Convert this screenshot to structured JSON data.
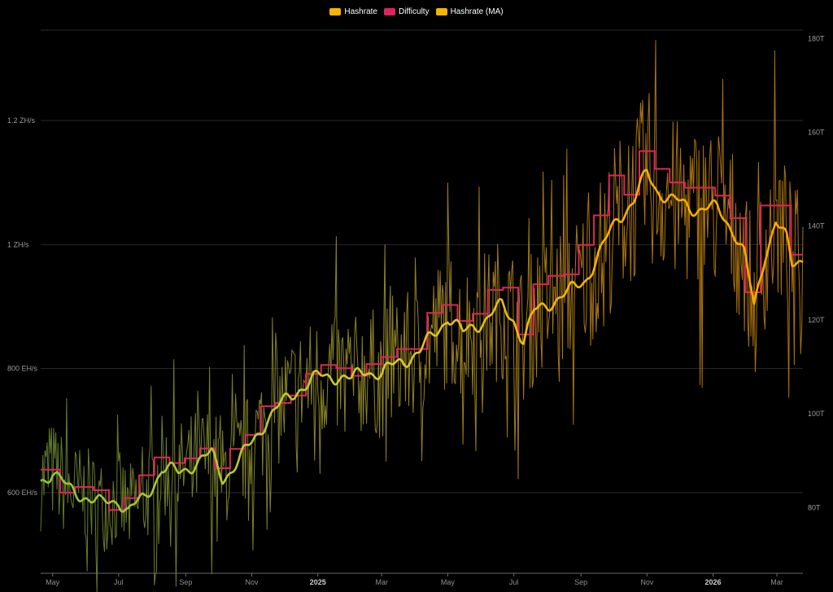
{
  "legend": [
    {
      "label": "Hashrate",
      "color": "#f5b400"
    },
    {
      "label": "Difficulty",
      "color": "#e0245e"
    },
    {
      "label": "Hashrate (MA)",
      "color": "#f5b400"
    }
  ],
  "chart_data": {
    "type": "line",
    "title": "",
    "x_range": [
      "2024-04-20",
      "2026-03-25"
    ],
    "x_ticks": [
      {
        "label": "May",
        "date": "2024-05-01"
      },
      {
        "label": "Jul",
        "date": "2024-07-01"
      },
      {
        "label": "Sep",
        "date": "2024-09-01"
      },
      {
        "label": "Nov",
        "date": "2024-11-01"
      },
      {
        "label": "2025",
        "date": "2025-01-01",
        "bold": true
      },
      {
        "label": "Mar",
        "date": "2025-03-01"
      },
      {
        "label": "May",
        "date": "2025-05-01"
      },
      {
        "label": "Jul",
        "date": "2025-07-01"
      },
      {
        "label": "Sep",
        "date": "2025-09-01"
      },
      {
        "label": "Nov",
        "date": "2025-11-01"
      },
      {
        "label": "2026",
        "date": "2026-01-01",
        "bold": true
      },
      {
        "label": "Mar",
        "date": "2026-03-01"
      }
    ],
    "y_left": {
      "unit": "EH/s",
      "range": [
        470,
        1355
      ],
      "ticks": [
        {
          "label": "600 EH/s",
          "value": 600
        },
        {
          "label": "800 EH/s",
          "value": 800
        },
        {
          "label": "1 ZH/s",
          "value": 1000
        },
        {
          "label": "1.2 ZH/s",
          "value": 1200
        }
      ]
    },
    "y_right": {
      "unit": "T",
      "range": [
        66,
        183
      ],
      "ticks": [
        {
          "label": "80T",
          "value": 80
        },
        {
          "label": "100T",
          "value": 100
        },
        {
          "label": "120T",
          "value": 120
        },
        {
          "label": "140T",
          "value": 140
        },
        {
          "label": "160T",
          "value": 160
        },
        {
          "label": "180T",
          "value": 180
        }
      ]
    },
    "grid": true,
    "legend_position": "top-center",
    "series": [
      {
        "name": "Hashrate (MA)",
        "axis": "left",
        "color_start": "#8fc43a",
        "color_end": "#f5a800",
        "points": [
          [
            "2024-04-20",
            620
          ],
          [
            "2024-05-01",
            635
          ],
          [
            "2024-05-15",
            605
          ],
          [
            "2024-06-01",
            595
          ],
          [
            "2024-06-15",
            580
          ],
          [
            "2024-07-01",
            590
          ],
          [
            "2024-07-10",
            570
          ],
          [
            "2024-07-25",
            590
          ],
          [
            "2024-08-10",
            640
          ],
          [
            "2024-08-25",
            630
          ],
          [
            "2024-09-10",
            650
          ],
          [
            "2024-09-25",
            660
          ],
          [
            "2024-10-05",
            625
          ],
          [
            "2024-10-20",
            650
          ],
          [
            "2024-11-01",
            680
          ],
          [
            "2024-11-15",
            720
          ],
          [
            "2024-12-01",
            745
          ],
          [
            "2024-12-15",
            770
          ],
          [
            "2025-01-01",
            785
          ],
          [
            "2025-01-20",
            790
          ],
          [
            "2025-02-01",
            780
          ],
          [
            "2025-02-15",
            800
          ],
          [
            "2025-03-01",
            790
          ],
          [
            "2025-03-20",
            815
          ],
          [
            "2025-04-05",
            825
          ],
          [
            "2025-04-20",
            860
          ],
          [
            "2025-05-01",
            885
          ],
          [
            "2025-05-15",
            855
          ],
          [
            "2025-05-25",
            870
          ],
          [
            "2025-06-05",
            880
          ],
          [
            "2025-06-20",
            900
          ],
          [
            "2025-07-01",
            880
          ],
          [
            "2025-07-10",
            845
          ],
          [
            "2025-07-20",
            890
          ],
          [
            "2025-08-05",
            910
          ],
          [
            "2025-08-20",
            920
          ],
          [
            "2025-09-05",
            945
          ],
          [
            "2025-09-20",
            990
          ],
          [
            "2025-10-05",
            1045
          ],
          [
            "2025-10-20",
            1070
          ],
          [
            "2025-11-01",
            1115
          ],
          [
            "2025-11-10",
            1090
          ],
          [
            "2025-11-25",
            1070
          ],
          [
            "2025-12-10",
            1060
          ],
          [
            "2025-12-25",
            1060
          ],
          [
            "2026-01-05",
            1055
          ],
          [
            "2026-01-20",
            1025
          ],
          [
            "2026-01-30",
            985
          ],
          [
            "2026-02-08",
            895
          ],
          [
            "2026-02-18",
            985
          ],
          [
            "2026-02-28",
            1040
          ],
          [
            "2026-03-10",
            1005
          ],
          [
            "2026-03-15",
            965
          ],
          [
            "2026-03-25",
            980
          ]
        ]
      },
      {
        "name": "Difficulty",
        "axis": "right",
        "color": "#e0245e",
        "steps": [
          [
            "2024-04-20",
            88.1
          ],
          [
            "2024-05-08",
            83.2
          ],
          [
            "2024-05-22",
            84.4
          ],
          [
            "2024-06-08",
            83.7
          ],
          [
            "2024-06-22",
            79.5
          ],
          [
            "2024-07-06",
            82.0
          ],
          [
            "2024-07-20",
            86.9
          ],
          [
            "2024-08-03",
            90.7
          ],
          [
            "2024-08-17",
            89.5
          ],
          [
            "2024-08-31",
            90.5
          ],
          [
            "2024-09-14",
            92.6
          ],
          [
            "2024-09-28",
            88.4
          ],
          [
            "2024-10-12",
            92.5
          ],
          [
            "2024-10-26",
            95.5
          ],
          [
            "2024-11-09",
            101.6
          ],
          [
            "2024-11-23",
            102.3
          ],
          [
            "2024-12-07",
            103.9
          ],
          [
            "2024-12-21",
            108.5
          ],
          [
            "2025-01-04",
            110.4
          ],
          [
            "2025-01-18",
            109.7
          ],
          [
            "2025-02-01",
            108.1
          ],
          [
            "2025-02-15",
            110.6
          ],
          [
            "2025-03-01",
            112.1
          ],
          [
            "2025-03-15",
            113.8
          ],
          [
            "2025-03-29",
            113.8
          ],
          [
            "2025-04-12",
            121.5
          ],
          [
            "2025-04-26",
            123.2
          ],
          [
            "2025-05-10",
            119.8
          ],
          [
            "2025-05-24",
            121.3
          ],
          [
            "2025-06-07",
            126.4
          ],
          [
            "2025-06-21",
            126.9
          ],
          [
            "2025-07-05",
            116.9
          ],
          [
            "2025-07-19",
            127.6
          ],
          [
            "2025-08-02",
            129.4
          ],
          [
            "2025-08-16",
            129.7
          ],
          [
            "2025-08-30",
            136.0
          ],
          [
            "2025-09-13",
            142.3
          ],
          [
            "2025-09-27",
            150.8
          ],
          [
            "2025-10-11",
            146.7
          ],
          [
            "2025-10-25",
            156.0
          ],
          [
            "2025-11-08",
            152.2
          ],
          [
            "2025-11-22",
            149.3
          ],
          [
            "2025-12-06",
            148.2
          ],
          [
            "2025-12-20",
            148.2
          ],
          [
            "2026-01-03",
            146.5
          ],
          [
            "2026-01-17",
            141.7
          ],
          [
            "2026-01-31",
            125.9
          ],
          [
            "2026-02-14",
            144.4
          ],
          [
            "2026-02-28",
            144.4
          ],
          [
            "2026-03-14",
            133.9
          ],
          [
            "2026-03-25",
            133.9
          ]
        ]
      },
      {
        "name": "Hashrate",
        "axis": "left",
        "color": "#f5b400",
        "note": "daily estimates, raw (noisy) around the moving average",
        "points": [
          [
            "2024-04-20",
            700
          ],
          [
            "2024-05-01",
            560
          ],
          [
            "2024-05-15",
            690
          ],
          [
            "2024-06-01",
            520
          ],
          [
            "2024-06-15",
            660
          ],
          [
            "2024-07-01",
            500
          ],
          [
            "2024-07-15",
            650
          ],
          [
            "2024-08-01",
            540
          ],
          [
            "2024-08-15",
            720
          ],
          [
            "2024-09-01",
            560
          ],
          [
            "2024-09-15",
            740
          ],
          [
            "2024-10-01",
            570
          ],
          [
            "2024-10-15",
            730
          ],
          [
            "2024-11-01",
            610
          ],
          [
            "2024-11-15",
            800
          ],
          [
            "2024-12-01",
            660
          ],
          [
            "2024-12-15",
            850
          ],
          [
            "2025-01-01",
            720
          ],
          [
            "2025-01-15",
            860
          ],
          [
            "2025-02-01",
            700
          ],
          [
            "2025-02-15",
            900
          ],
          [
            "2025-03-01",
            720
          ],
          [
            "2025-03-15",
            950
          ],
          [
            "2025-04-01",
            740
          ],
          [
            "2025-04-15",
            1020
          ],
          [
            "2025-05-01",
            760
          ],
          [
            "2025-05-15",
            1030
          ],
          [
            "2025-06-01",
            800
          ],
          [
            "2025-06-15",
            1010
          ],
          [
            "2025-07-01",
            700
          ],
          [
            "2025-07-15",
            1000
          ],
          [
            "2025-08-01",
            820
          ],
          [
            "2025-08-15",
            1070
          ],
          [
            "2025-09-01",
            820
          ],
          [
            "2025-09-15",
            1130
          ],
          [
            "2025-10-01",
            900
          ],
          [
            "2025-10-15",
            1240
          ],
          [
            "2025-11-01",
            900
          ],
          [
            "2025-11-15",
            1240
          ],
          [
            "2025-12-01",
            940
          ],
          [
            "2025-12-15",
            1180
          ],
          [
            "2026-01-01",
            880
          ],
          [
            "2026-01-15",
            1150
          ],
          [
            "2026-02-01",
            700
          ],
          [
            "2026-02-15",
            1230
          ],
          [
            "2026-03-01",
            880
          ],
          [
            "2026-03-15",
            1100
          ],
          [
            "2026-03-25",
            900
          ]
        ]
      }
    ]
  }
}
